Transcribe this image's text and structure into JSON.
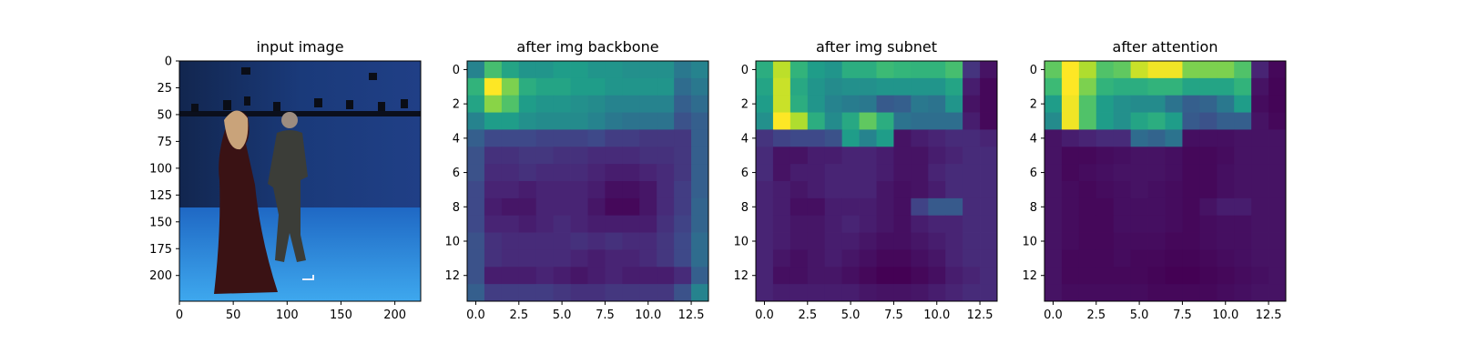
{
  "chart_data": [
    {
      "type": "image",
      "title": "input image",
      "image_size": [
        224,
        224
      ],
      "xticks": [
        0,
        50,
        100,
        150,
        200
      ],
      "yticks": [
        0,
        25,
        50,
        75,
        100,
        125,
        150,
        175,
        200
      ],
      "xlim": [
        0,
        224
      ],
      "ylim": [
        224,
        0
      ],
      "content": "motion-capture studio with blue backdrop, two people in costume walking"
    },
    {
      "type": "heatmap",
      "title": "after img backbone",
      "colormap": "viridis",
      "xticks": [
        0.0,
        2.5,
        5.0,
        7.5,
        10.0,
        12.5
      ],
      "yticks": [
        0,
        2,
        4,
        6,
        8,
        10,
        12
      ],
      "xlim": [
        -0.5,
        13.5
      ],
      "ylim": [
        13.5,
        -0.5
      ],
      "values": [
        [
          0.45,
          0.7,
          0.58,
          0.52,
          0.52,
          0.55,
          0.55,
          0.52,
          0.52,
          0.5,
          0.5,
          0.5,
          0.4,
          0.45
        ],
        [
          0.65,
          1.0,
          0.8,
          0.62,
          0.58,
          0.58,
          0.55,
          0.55,
          0.52,
          0.52,
          0.52,
          0.52,
          0.35,
          0.4
        ],
        [
          0.58,
          0.82,
          0.72,
          0.55,
          0.52,
          0.52,
          0.5,
          0.48,
          0.45,
          0.45,
          0.45,
          0.45,
          0.3,
          0.35
        ],
        [
          0.45,
          0.55,
          0.55,
          0.5,
          0.48,
          0.48,
          0.48,
          0.45,
          0.4,
          0.38,
          0.38,
          0.38,
          0.25,
          0.3
        ],
        [
          0.3,
          0.22,
          0.22,
          0.22,
          0.2,
          0.2,
          0.2,
          0.22,
          0.18,
          0.18,
          0.16,
          0.16,
          0.16,
          0.3
        ],
        [
          0.25,
          0.14,
          0.14,
          0.16,
          0.16,
          0.14,
          0.14,
          0.12,
          0.12,
          0.12,
          0.14,
          0.14,
          0.16,
          0.3
        ],
        [
          0.25,
          0.12,
          0.12,
          0.14,
          0.12,
          0.12,
          0.12,
          0.1,
          0.08,
          0.08,
          0.1,
          0.12,
          0.16,
          0.3
        ],
        [
          0.22,
          0.1,
          0.1,
          0.08,
          0.1,
          0.1,
          0.1,
          0.08,
          0.04,
          0.04,
          0.06,
          0.12,
          0.18,
          0.3
        ],
        [
          0.22,
          0.08,
          0.06,
          0.06,
          0.1,
          0.1,
          0.1,
          0.06,
          0.02,
          0.02,
          0.06,
          0.12,
          0.18,
          0.32
        ],
        [
          0.22,
          0.1,
          0.1,
          0.08,
          0.1,
          0.12,
          0.1,
          0.08,
          0.08,
          0.08,
          0.08,
          0.14,
          0.2,
          0.32
        ],
        [
          0.25,
          0.14,
          0.12,
          0.12,
          0.12,
          0.12,
          0.14,
          0.12,
          0.14,
          0.12,
          0.12,
          0.16,
          0.22,
          0.35
        ],
        [
          0.25,
          0.14,
          0.12,
          0.12,
          0.12,
          0.12,
          0.1,
          0.08,
          0.1,
          0.1,
          0.12,
          0.16,
          0.22,
          0.35
        ],
        [
          0.25,
          0.08,
          0.08,
          0.08,
          0.1,
          0.08,
          0.06,
          0.08,
          0.1,
          0.08,
          0.08,
          0.08,
          0.12,
          0.3
        ],
        [
          0.3,
          0.18,
          0.18,
          0.18,
          0.18,
          0.16,
          0.14,
          0.14,
          0.16,
          0.16,
          0.16,
          0.16,
          0.25,
          0.45
        ]
      ]
    },
    {
      "type": "heatmap",
      "title": "after img subnet",
      "colormap": "viridis",
      "xticks": [
        0.0,
        2.5,
        5.0,
        7.5,
        10.0,
        12.5
      ],
      "yticks": [
        0,
        2,
        4,
        6,
        8,
        10,
        12
      ],
      "xlim": [
        -0.5,
        13.5
      ],
      "ylim": [
        13.5,
        -0.5
      ],
      "values": [
        [
          0.62,
          0.9,
          0.65,
          0.55,
          0.52,
          0.62,
          0.62,
          0.68,
          0.66,
          0.65,
          0.65,
          0.7,
          0.15,
          0.05
        ],
        [
          0.58,
          0.92,
          0.6,
          0.52,
          0.48,
          0.5,
          0.5,
          0.52,
          0.52,
          0.52,
          0.52,
          0.58,
          0.08,
          0.02
        ],
        [
          0.55,
          0.92,
          0.62,
          0.52,
          0.45,
          0.42,
          0.4,
          0.28,
          0.3,
          0.4,
          0.38,
          0.52,
          0.05,
          0.02
        ],
        [
          0.5,
          1.0,
          0.88,
          0.62,
          0.48,
          0.6,
          0.75,
          0.62,
          0.38,
          0.36,
          0.36,
          0.36,
          0.08,
          0.02
        ],
        [
          0.15,
          0.2,
          0.22,
          0.22,
          0.25,
          0.55,
          0.45,
          0.55,
          0.05,
          0.08,
          0.1,
          0.12,
          0.12,
          0.1
        ],
        [
          0.12,
          0.05,
          0.05,
          0.08,
          0.08,
          0.1,
          0.1,
          0.08,
          0.05,
          0.05,
          0.08,
          0.1,
          0.12,
          0.12
        ],
        [
          0.12,
          0.05,
          0.08,
          0.08,
          0.1,
          0.1,
          0.1,
          0.08,
          0.05,
          0.05,
          0.1,
          0.12,
          0.12,
          0.12
        ],
        [
          0.1,
          0.08,
          0.06,
          0.08,
          0.1,
          0.1,
          0.1,
          0.06,
          0.04,
          0.05,
          0.08,
          0.12,
          0.12,
          0.12
        ],
        [
          0.1,
          0.08,
          0.04,
          0.04,
          0.08,
          0.08,
          0.08,
          0.06,
          0.04,
          0.2,
          0.28,
          0.28,
          0.12,
          0.12
        ],
        [
          0.1,
          0.08,
          0.06,
          0.06,
          0.08,
          0.1,
          0.08,
          0.06,
          0.04,
          0.08,
          0.1,
          0.1,
          0.12,
          0.12
        ],
        [
          0.1,
          0.08,
          0.06,
          0.06,
          0.08,
          0.08,
          0.06,
          0.04,
          0.04,
          0.06,
          0.08,
          0.1,
          0.12,
          0.12
        ],
        [
          0.1,
          0.06,
          0.04,
          0.06,
          0.08,
          0.06,
          0.04,
          0.02,
          0.02,
          0.04,
          0.06,
          0.1,
          0.12,
          0.12
        ],
        [
          0.1,
          0.04,
          0.04,
          0.06,
          0.06,
          0.04,
          0.02,
          0.0,
          0.0,
          0.02,
          0.04,
          0.08,
          0.1,
          0.12
        ],
        [
          0.1,
          0.08,
          0.08,
          0.08,
          0.08,
          0.08,
          0.06,
          0.05,
          0.05,
          0.06,
          0.08,
          0.1,
          0.12,
          0.12
        ]
      ]
    },
    {
      "type": "heatmap",
      "title": "after attention",
      "colormap": "viridis",
      "xticks": [
        0.0,
        2.5,
        5.0,
        7.5,
        10.0,
        12.5
      ],
      "yticks": [
        0,
        2,
        4,
        6,
        8,
        10,
        12
      ],
      "xlim": [
        -0.5,
        13.5
      ],
      "ylim": [
        13.5,
        -0.5
      ],
      "values": [
        [
          0.75,
          1.0,
          0.88,
          0.72,
          0.75,
          0.92,
          0.98,
          0.98,
          0.8,
          0.8,
          0.8,
          0.72,
          0.1,
          0.02
        ],
        [
          0.68,
          1.0,
          0.8,
          0.65,
          0.62,
          0.62,
          0.65,
          0.65,
          0.58,
          0.58,
          0.58,
          0.65,
          0.05,
          0.01
        ],
        [
          0.55,
          0.98,
          0.72,
          0.55,
          0.5,
          0.48,
          0.48,
          0.38,
          0.3,
          0.32,
          0.4,
          0.55,
          0.03,
          0.01
        ],
        [
          0.48,
          0.98,
          0.72,
          0.55,
          0.5,
          0.58,
          0.62,
          0.55,
          0.28,
          0.25,
          0.3,
          0.3,
          0.05,
          0.02
        ],
        [
          0.05,
          0.08,
          0.1,
          0.12,
          0.12,
          0.35,
          0.32,
          0.38,
          0.04,
          0.04,
          0.04,
          0.05,
          0.05,
          0.05
        ],
        [
          0.05,
          0.02,
          0.02,
          0.03,
          0.04,
          0.05,
          0.05,
          0.04,
          0.02,
          0.02,
          0.03,
          0.05,
          0.05,
          0.05
        ],
        [
          0.05,
          0.02,
          0.03,
          0.04,
          0.05,
          0.05,
          0.05,
          0.04,
          0.02,
          0.02,
          0.04,
          0.05,
          0.05,
          0.05
        ],
        [
          0.05,
          0.03,
          0.02,
          0.03,
          0.04,
          0.05,
          0.04,
          0.03,
          0.02,
          0.02,
          0.04,
          0.05,
          0.05,
          0.05
        ],
        [
          0.05,
          0.03,
          0.02,
          0.02,
          0.04,
          0.04,
          0.04,
          0.03,
          0.02,
          0.05,
          0.08,
          0.08,
          0.05,
          0.05
        ],
        [
          0.05,
          0.03,
          0.02,
          0.02,
          0.04,
          0.04,
          0.04,
          0.03,
          0.02,
          0.03,
          0.04,
          0.04,
          0.05,
          0.05
        ],
        [
          0.05,
          0.03,
          0.02,
          0.02,
          0.03,
          0.03,
          0.03,
          0.02,
          0.02,
          0.03,
          0.04,
          0.04,
          0.05,
          0.05
        ],
        [
          0.05,
          0.02,
          0.02,
          0.02,
          0.03,
          0.02,
          0.02,
          0.01,
          0.01,
          0.02,
          0.03,
          0.04,
          0.05,
          0.05
        ],
        [
          0.05,
          0.02,
          0.02,
          0.02,
          0.02,
          0.02,
          0.01,
          0.0,
          0.0,
          0.01,
          0.02,
          0.03,
          0.04,
          0.05
        ],
        [
          0.05,
          0.03,
          0.03,
          0.03,
          0.03,
          0.03,
          0.02,
          0.02,
          0.02,
          0.02,
          0.03,
          0.04,
          0.05,
          0.05
        ]
      ]
    }
  ]
}
